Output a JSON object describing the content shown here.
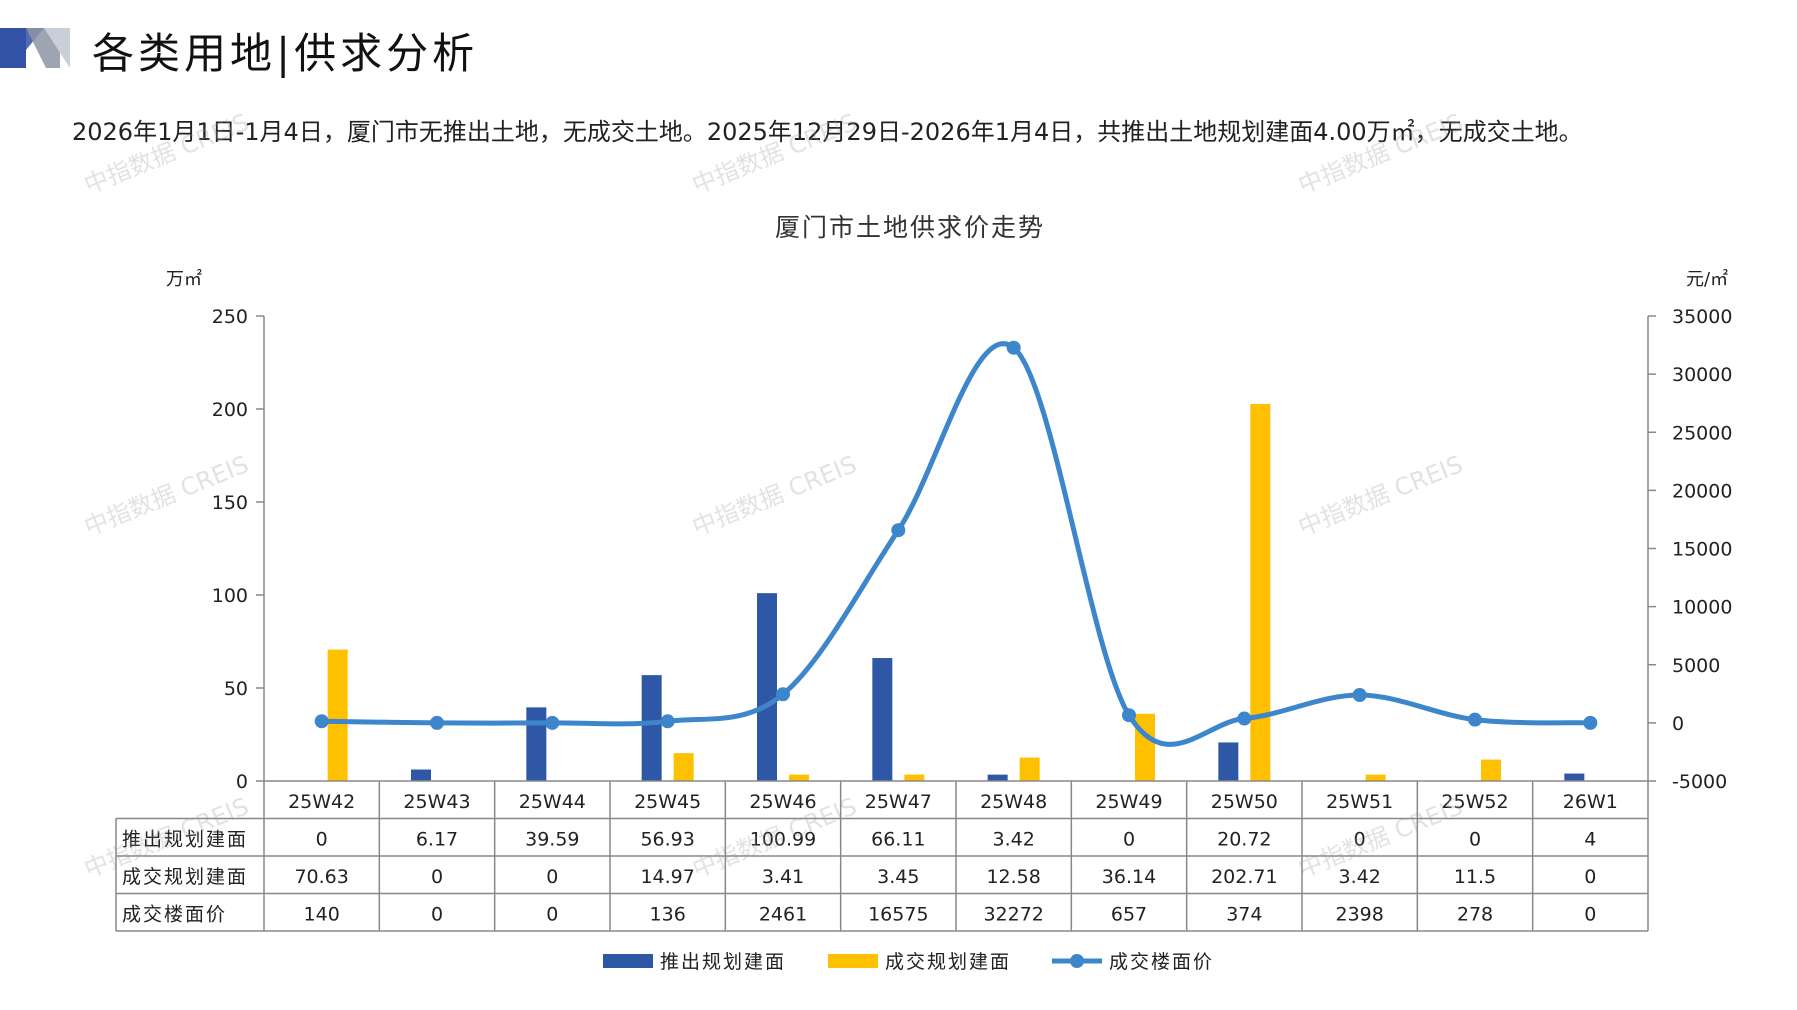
{
  "header": {
    "title": "各类用地|供求分析",
    "summary": "2026年1月1日-1月4日，厦门市无推出土地，无成交土地。2025年12月29日-2026年1月4日，共推出土地规划建面4.00万㎡，无成交土地。"
  },
  "watermark": "中指数据 CREIS",
  "colors": {
    "supply": "#2E57A6",
    "deal": "#FFC000",
    "price": "#3D86CC",
    "accent": "#3451A8"
  },
  "chart_data": {
    "type": "bar",
    "title": "厦门市土地供求价走势",
    "ylabel_left": "万㎡",
    "ylabel_right": "元/㎡",
    "ylim_left": [
      0,
      250
    ],
    "ylim_right": [
      -5000,
      35000
    ],
    "yticks_left": [
      0,
      50,
      100,
      150,
      200,
      250
    ],
    "yticks_right": [
      -5000,
      0,
      5000,
      10000,
      15000,
      20000,
      25000,
      30000,
      35000
    ],
    "categories": [
      "25W42",
      "25W43",
      "25W44",
      "25W45",
      "25W46",
      "25W47",
      "25W48",
      "25W49",
      "25W50",
      "25W51",
      "25W52",
      "26W1"
    ],
    "series": [
      {
        "name": "推出规划建面",
        "type": "bar",
        "axis": "left",
        "values": [
          0,
          6.17,
          39.59,
          56.93,
          100.99,
          66.11,
          3.42,
          0,
          20.72,
          0,
          0,
          4
        ],
        "labels": [
          "0",
          "6.17",
          "39.59",
          "56.93",
          "100.99",
          "66.11",
          "3.42",
          "0",
          "20.72",
          "0",
          "0",
          "4"
        ]
      },
      {
        "name": "成交规划建面",
        "type": "bar",
        "axis": "left",
        "values": [
          70.63,
          0,
          0,
          14.97,
          3.41,
          3.45,
          12.58,
          36.14,
          202.71,
          3.42,
          11.5,
          0
        ],
        "labels": [
          "70.63",
          "0",
          "0",
          "14.97",
          "3.41",
          "3.45",
          "12.58",
          "36.14",
          "202.71",
          "3.42",
          "11.5",
          "0"
        ]
      },
      {
        "name": "成交楼面价",
        "type": "line",
        "axis": "right",
        "values": [
          140,
          0,
          0,
          136,
          2461,
          16575,
          32272,
          657,
          374,
          2398,
          278,
          0
        ],
        "labels": [
          "140",
          "0",
          "0",
          "136",
          "2461",
          "16575",
          "32272",
          "657",
          "374",
          "2398",
          "278",
          "0"
        ]
      }
    ],
    "legend_position": "bottom",
    "grid": false
  }
}
